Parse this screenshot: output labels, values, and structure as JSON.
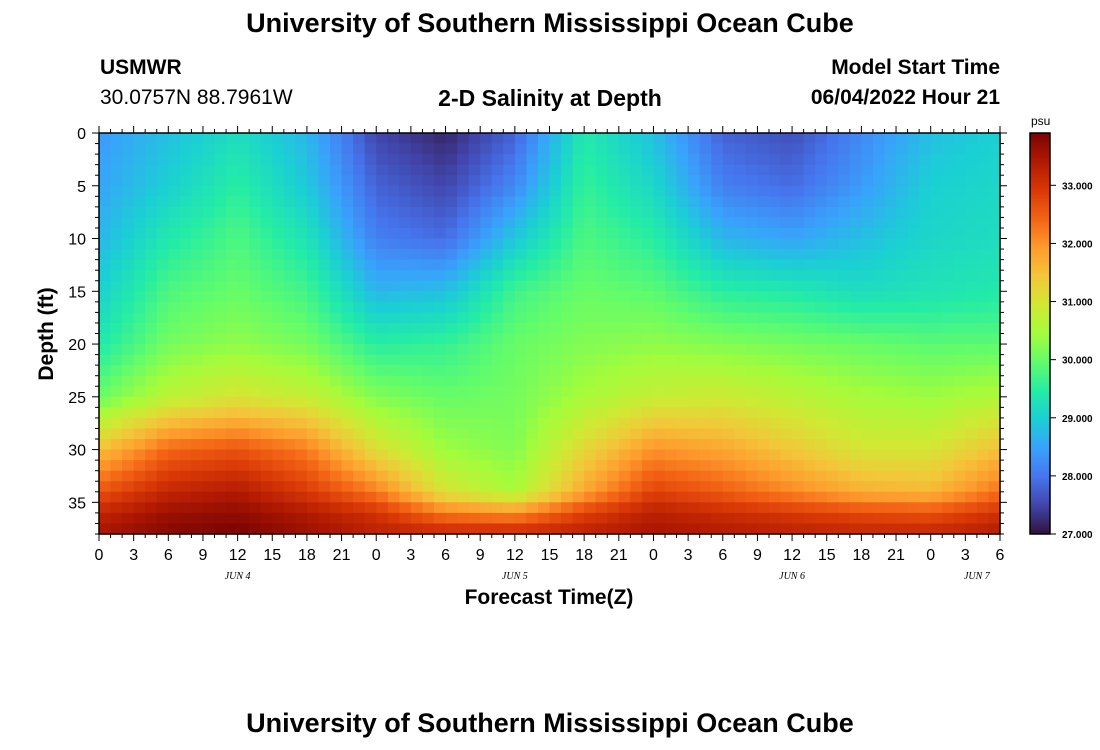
{
  "page": {
    "title_top": "University of Southern Mississippi Ocean Cube",
    "title_bottom": "University of Southern Mississippi Ocean Cube",
    "station": "USMWR",
    "location": "30.0757N  88.7961W",
    "plot_title": "2-D Salinity at Depth",
    "model_start_label": "Model Start Time",
    "model_start_value": "06/04/2022 Hour 21"
  },
  "chart_data": {
    "type": "heatmap",
    "title": "2-D Salinity at Depth",
    "xlabel": "Forecast Time(Z)",
    "ylabel": "Depth (ft)",
    "x_tick_labels": [
      "0",
      "3",
      "6",
      "9",
      "12",
      "15",
      "18",
      "21",
      "0",
      "3",
      "6",
      "9",
      "12",
      "15",
      "18",
      "21",
      "0",
      "3",
      "6",
      "9",
      "12",
      "15",
      "18",
      "21",
      "0",
      "3",
      "6"
    ],
    "x_range_hours": [
      0,
      78
    ],
    "date_labels": [
      {
        "label": "JUN 4",
        "hour": 12
      },
      {
        "label": "JUN 5",
        "hour": 36
      },
      {
        "label": "JUN 6",
        "hour": 60
      },
      {
        "label": "JUN 7",
        "hour": 76
      }
    ],
    "y_ticks": [
      0,
      5,
      10,
      15,
      20,
      25,
      30,
      35
    ],
    "ylim": [
      38,
      0
    ],
    "colorbar": {
      "unit": "psu",
      "range": [
        27.0,
        33.9
      ],
      "tick_values": [
        27.0,
        28.0,
        29.0,
        30.0,
        31.0,
        32.0,
        33.0
      ],
      "tick_labels": [
        "27.000",
        "28.000",
        "29.000",
        "30.000",
        "31.000",
        "32.000",
        "33.000"
      ],
      "colormap": [
        "#30123b",
        "#4145ab",
        "#4675ed",
        "#39a2fc",
        "#1bcfd4",
        "#24eca6",
        "#61fc6c",
        "#a4fc3b",
        "#d1e834",
        "#f3c63a",
        "#fe9b2d",
        "#f36315",
        "#d93806",
        "#b11901",
        "#7a0403"
      ]
    },
    "salinity_grid": {
      "x_hours": [
        0,
        6,
        12,
        18,
        24,
        30,
        36,
        42,
        48,
        54,
        60,
        66,
        72,
        78
      ],
      "depths": [
        0,
        5,
        10,
        15,
        20,
        25,
        30,
        34,
        36,
        38
      ],
      "values": [
        [
          28.4,
          28.8,
          29.2,
          28.7,
          27.5,
          27.2,
          27.8,
          29.4,
          28.8,
          27.8,
          27.6,
          28.2,
          28.8,
          29.0
        ],
        [
          28.5,
          29.0,
          29.5,
          28.9,
          27.8,
          27.5,
          28.2,
          29.6,
          29.1,
          28.1,
          27.9,
          28.4,
          29.0,
          29.1
        ],
        [
          28.7,
          29.4,
          29.8,
          29.3,
          28.1,
          27.9,
          28.9,
          29.8,
          29.5,
          28.7,
          28.5,
          28.8,
          29.1,
          29.2
        ],
        [
          29.0,
          29.8,
          30.0,
          29.7,
          28.7,
          28.8,
          29.7,
          30.0,
          29.9,
          29.5,
          29.4,
          29.2,
          29.3,
          29.4
        ],
        [
          29.4,
          30.1,
          30.3,
          30.1,
          29.5,
          29.6,
          30.0,
          30.2,
          30.3,
          30.2,
          30.1,
          30.0,
          29.9,
          29.9
        ],
        [
          30.0,
          30.7,
          31.0,
          30.8,
          30.2,
          30.0,
          30.1,
          30.5,
          30.8,
          30.9,
          30.7,
          30.5,
          30.4,
          30.6
        ],
        [
          31.5,
          32.4,
          32.6,
          32.2,
          31.1,
          30.4,
          30.2,
          31.2,
          32.0,
          31.8,
          31.4,
          31.0,
          31.0,
          31.5
        ],
        [
          32.6,
          33.2,
          33.4,
          32.9,
          32.2,
          31.0,
          30.5,
          31.8,
          32.8,
          32.5,
          32.1,
          31.7,
          31.6,
          32.3
        ],
        [
          33.2,
          33.6,
          33.7,
          33.4,
          33.0,
          32.2,
          32.0,
          32.8,
          33.3,
          33.1,
          32.9,
          32.7,
          32.6,
          33.0
        ],
        [
          33.5,
          33.8,
          33.9,
          33.6,
          33.3,
          33.2,
          33.2,
          33.3,
          33.5,
          33.4,
          33.3,
          33.2,
          33.2,
          33.4
        ]
      ]
    }
  }
}
